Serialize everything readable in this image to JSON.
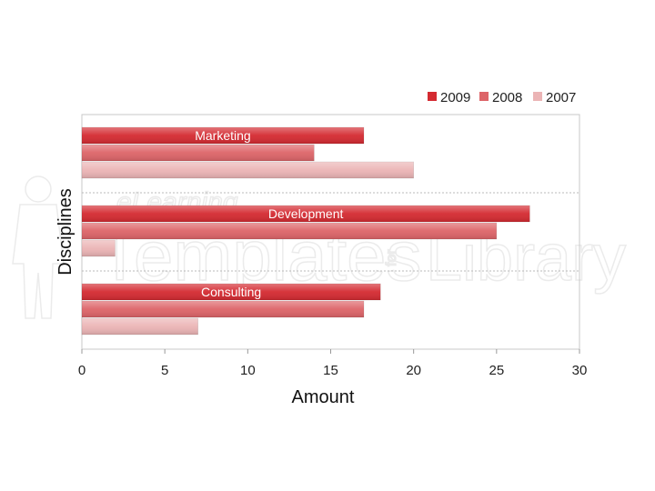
{
  "chart_data": {
    "type": "bar",
    "orientation": "horizontal",
    "categories": [
      "Marketing",
      "Development",
      "Consulting"
    ],
    "series": [
      {
        "name": "2009",
        "values": [
          17,
          27,
          18
        ],
        "color": "#d42a31"
      },
      {
        "name": "2008",
        "values": [
          14,
          25,
          17
        ],
        "color": "#dd6468"
      },
      {
        "name": "2007",
        "values": [
          20,
          2,
          7
        ],
        "color": "#ebb4b5"
      }
    ],
    "xlabel": "Amount",
    "ylabel": "Disciplines",
    "xlim": [
      0,
      30
    ],
    "xticks": [
      0,
      5,
      10,
      15,
      20,
      25,
      30
    ],
    "legend": "top-right",
    "grid": false
  },
  "watermark": {
    "line1": "eLearning",
    "line2": "Templates",
    "line3": "for",
    "line4": "Library"
  }
}
